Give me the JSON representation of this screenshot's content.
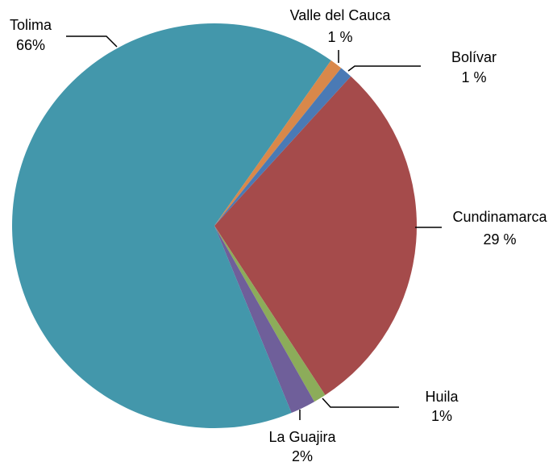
{
  "chart_data": {
    "type": "pie",
    "categories": [
      "Cundinamarca",
      "Huila",
      "La Guajira",
      "Tolima",
      "Valle del Cauca",
      "Bolívar"
    ],
    "values": [
      29,
      1,
      2,
      66,
      1,
      1
    ],
    "value_labels": [
      "29 %",
      "1%",
      "2%",
      "66%",
      "1 %",
      "1 %"
    ],
    "colors": [
      "#a54b4b",
      "#8cac5a",
      "#6f5f9a",
      "#4397ab",
      "#d9884a",
      "#4a7ab5"
    ]
  }
}
